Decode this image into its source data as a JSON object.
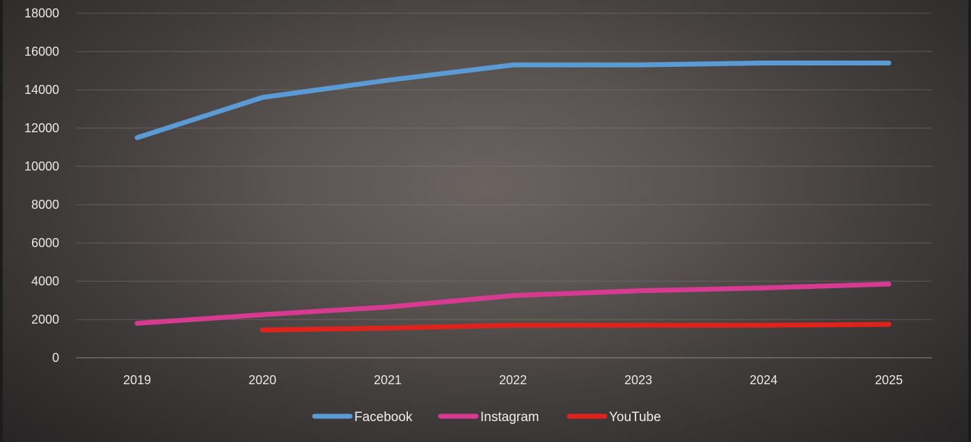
{
  "chart_data": {
    "type": "line",
    "title": "",
    "xlabel": "",
    "ylabel": "",
    "categories": [
      "2019",
      "2020",
      "2021",
      "2022",
      "2023",
      "2024",
      "2025"
    ],
    "ylim": [
      0,
      18000
    ],
    "yticks": [
      0,
      2000,
      4000,
      6000,
      8000,
      10000,
      12000,
      14000,
      16000,
      18000
    ],
    "grid": true,
    "legend_position": "bottom",
    "series": [
      {
        "name": "Facebook",
        "color": "#5b9bd5",
        "values": [
          11500,
          13600,
          14500,
          15300,
          15300,
          15400,
          15400
        ]
      },
      {
        "name": "Instagram",
        "color": "#d63a91",
        "values": [
          1800,
          2250,
          2650,
          3250,
          3500,
          3650,
          3850
        ]
      },
      {
        "name": "YouTube",
        "color": "#e0221c",
        "values": [
          null,
          1450,
          1550,
          1700,
          1700,
          1700,
          1750
        ]
      }
    ]
  }
}
